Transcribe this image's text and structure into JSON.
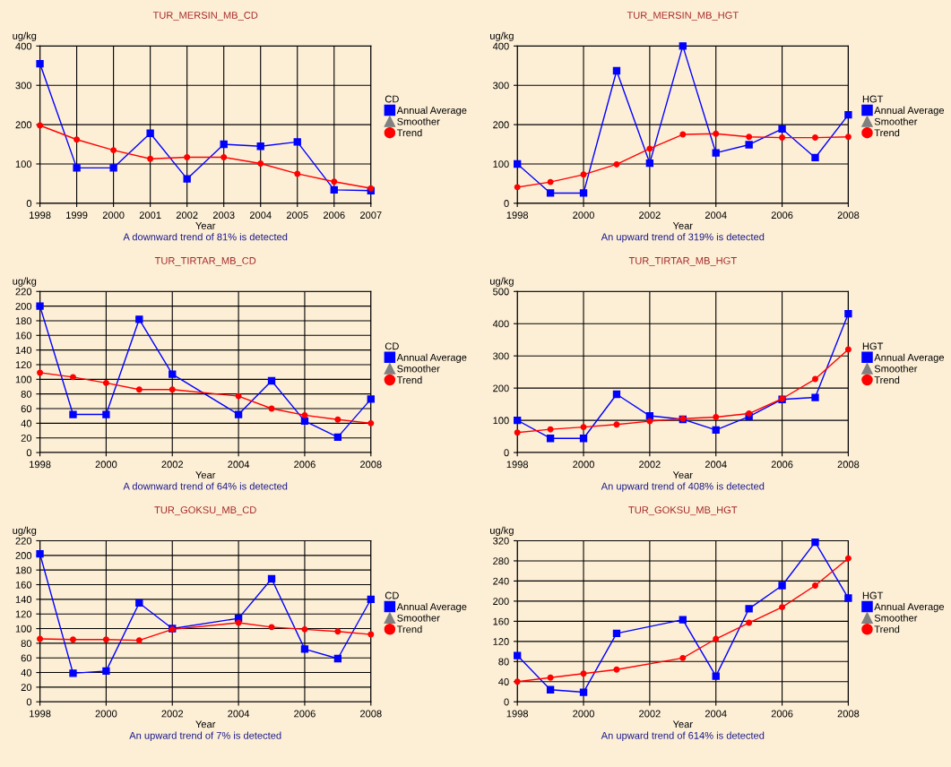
{
  "chart_data": [
    {
      "type": "line",
      "title": "TUR_MERSIN_MB_CD",
      "xlabel": "Year",
      "ylabel": "ug/kg",
      "legend_title": "CD",
      "legend": "right",
      "grid": true,
      "line_style": "solid",
      "xlim": [
        1998,
        2007
      ],
      "xticks": [
        1998,
        1999,
        2000,
        2001,
        2002,
        2003,
        2004,
        2005,
        2006,
        2007
      ],
      "ylim": [
        0,
        400
      ],
      "yticks": [
        0,
        100,
        200,
        300,
        400
      ],
      "annotations": [
        "A downward trend of 81% is detected"
      ],
      "series": [
        {
          "name": "Annual Average",
          "color": "#0000ff",
          "marker": "square",
          "x": [
            1998,
            1999,
            2000,
            2001,
            2002,
            2003,
            2004,
            2005,
            2006,
            2007
          ],
          "values": [
            355,
            90,
            90,
            178,
            62,
            150,
            145,
            156,
            34,
            32
          ]
        },
        {
          "name": "Smoother",
          "color": "#808080",
          "marker": "triangle"
        },
        {
          "name": "Trend",
          "color": "#ff0000",
          "marker": "circle",
          "x": [
            1998,
            1999,
            2000,
            2001,
            2002,
            2003,
            2004,
            2005,
            2006,
            2007
          ],
          "values": [
            198,
            162,
            135,
            113,
            117,
            117,
            101,
            75,
            55,
            38
          ]
        }
      ]
    },
    {
      "type": "line",
      "title": "TUR_MERSIN_MB_HGT",
      "xlabel": "Year",
      "ylabel": "ug/kg",
      "legend_title": "HGT",
      "legend": "right",
      "grid": true,
      "line_style": "solid",
      "xlim": [
        1998,
        2008
      ],
      "xticks": [
        1998,
        2000,
        2002,
        2004,
        2006,
        2008
      ],
      "ylim": [
        0,
        400
      ],
      "yticks": [
        0,
        100,
        200,
        300,
        400
      ],
      "annotations": [
        "An upward trend of 319% is detected"
      ],
      "series": [
        {
          "name": "Annual Average",
          "color": "#0000ff",
          "marker": "square",
          "x": [
            1998,
            1999,
            2000,
            2001,
            2002,
            2003,
            2004,
            2005,
            2006,
            2007,
            2008
          ],
          "values": [
            100,
            26,
            26,
            337,
            102,
            400,
            128,
            149,
            189,
            116,
            225
          ]
        },
        {
          "name": "Smoother",
          "color": "#808080",
          "marker": "triangle"
        },
        {
          "name": "Trend",
          "color": "#ff0000",
          "marker": "circle",
          "x": [
            1998,
            1999,
            2000,
            2001,
            2002,
            2003,
            2004,
            2005,
            2006,
            2007,
            2008
          ],
          "values": [
            41,
            54,
            73,
            99,
            139,
            175,
            177,
            169,
            167,
            167,
            169
          ]
        }
      ]
    },
    {
      "type": "line",
      "title": "TUR_TIRTAR_MB_CD",
      "xlabel": "Year",
      "ylabel": "ug/kg",
      "legend_title": "CD",
      "legend": "right",
      "grid": true,
      "line_style": "solid",
      "xlim": [
        1998,
        2008
      ],
      "xticks": [
        1998,
        2000,
        2002,
        2004,
        2006,
        2008
      ],
      "ylim": [
        0,
        220
      ],
      "yticks": [
        0,
        20,
        40,
        60,
        80,
        100,
        120,
        140,
        160,
        180,
        200,
        220
      ],
      "annotations": [
        "A downward trend of 64% is detected"
      ],
      "series": [
        {
          "name": "Annual Average",
          "color": "#0000ff",
          "marker": "square",
          "x": [
            1998,
            1999,
            2000,
            2001,
            2002,
            2004,
            2005,
            2006,
            2007,
            2008
          ],
          "values": [
            200,
            52,
            52,
            182,
            107,
            52,
            98,
            43,
            21,
            73
          ]
        },
        {
          "name": "Smoother",
          "color": "#808080",
          "marker": "triangle"
        },
        {
          "name": "Trend",
          "color": "#ff0000",
          "marker": "circle",
          "x": [
            1998,
            1999,
            2000,
            2001,
            2002,
            2004,
            2005,
            2006,
            2007,
            2008
          ],
          "values": [
            109,
            103,
            95,
            86,
            86,
            77,
            60,
            51,
            45,
            40
          ]
        }
      ]
    },
    {
      "type": "line",
      "title": "TUR_TIRTAR_MB_HGT",
      "xlabel": "Year",
      "ylabel": "ug/kg",
      "legend_title": "HGT",
      "legend": "right",
      "grid": true,
      "line_style": "solid",
      "xlim": [
        1998,
        2008
      ],
      "xticks": [
        1998,
        2000,
        2002,
        2004,
        2006,
        2008
      ],
      "ylim": [
        0,
        500
      ],
      "yticks": [
        0,
        100,
        200,
        300,
        400,
        500
      ],
      "annotations": [
        "An upward trend of 408% is detected"
      ],
      "series": [
        {
          "name": "Annual Average",
          "color": "#0000ff",
          "marker": "square",
          "x": [
            1998,
            1999,
            2000,
            2001,
            2002,
            2003,
            2004,
            2005,
            2006,
            2007,
            2008
          ],
          "values": [
            100,
            44,
            44,
            181,
            114,
            103,
            70,
            112,
            165,
            171,
            431
          ]
        },
        {
          "name": "Smoother",
          "color": "#808080",
          "marker": "triangle"
        },
        {
          "name": "Trend",
          "color": "#ff0000",
          "marker": "circle",
          "x": [
            1998,
            1999,
            2000,
            2001,
            2002,
            2003,
            2004,
            2005,
            2006,
            2007,
            2008
          ],
          "values": [
            62,
            72,
            79,
            87,
            97,
            105,
            110,
            121,
            167,
            228,
            320
          ]
        }
      ]
    },
    {
      "type": "line",
      "title": "TUR_GOKSU_MB_CD",
      "xlabel": "Year",
      "ylabel": "ug/kg",
      "legend_title": "CD",
      "legend": "right",
      "grid": true,
      "line_style": "solid",
      "xlim": [
        1998,
        2008
      ],
      "xticks": [
        1998,
        2000,
        2002,
        2004,
        2006,
        2008
      ],
      "ylim": [
        0,
        220
      ],
      "yticks": [
        0,
        20,
        40,
        60,
        80,
        100,
        120,
        140,
        160,
        180,
        200,
        220
      ],
      "annotations": [
        "An upward trend of 7% is detected"
      ],
      "series": [
        {
          "name": "Annual Average",
          "color": "#0000ff",
          "marker": "square",
          "x": [
            1998,
            1999,
            2000,
            2001,
            2002,
            2004,
            2005,
            2006,
            2007,
            2008
          ],
          "values": [
            202,
            39,
            42,
            135,
            100,
            114,
            168,
            72,
            59,
            140
          ]
        },
        {
          "name": "Smoother",
          "color": "#808080",
          "marker": "triangle"
        },
        {
          "name": "Trend",
          "color": "#ff0000",
          "marker": "circle",
          "x": [
            1998,
            1999,
            2000,
            2001,
            2002,
            2004,
            2005,
            2006,
            2007,
            2008
          ],
          "values": [
            86,
            85,
            85,
            84,
            99,
            108,
            102,
            99,
            96,
            92
          ]
        }
      ]
    },
    {
      "type": "line",
      "title": "TUR_GOKSU_MB_HGT",
      "xlabel": "Year",
      "ylabel": "ug/kg",
      "legend_title": "HGT",
      "legend": "right",
      "grid": true,
      "line_style": "solid",
      "xlim": [
        1998,
        2008
      ],
      "xticks": [
        1998,
        2000,
        2002,
        2004,
        2006,
        2008
      ],
      "ylim": [
        0,
        320
      ],
      "yticks": [
        0,
        40,
        80,
        120,
        160,
        200,
        240,
        280,
        320
      ],
      "annotations": [
        "An upward trend of 614% is detected"
      ],
      "series": [
        {
          "name": "Annual Average",
          "color": "#0000ff",
          "marker": "square",
          "x": [
            1998,
            1999,
            2000,
            2001,
            2003,
            2004,
            2005,
            2006,
            2007,
            2008
          ],
          "values": [
            92,
            24,
            19,
            136,
            163,
            51,
            185,
            231,
            317,
            206
          ]
        },
        {
          "name": "Smoother",
          "color": "#808080",
          "marker": "triangle"
        },
        {
          "name": "Trend",
          "color": "#ff0000",
          "marker": "circle",
          "x": [
            1998,
            1999,
            2000,
            2001,
            2003,
            2004,
            2005,
            2006,
            2007,
            2008
          ],
          "values": [
            40,
            48,
            56,
            64,
            87,
            125,
            157,
            188,
            231,
            285
          ]
        }
      ]
    }
  ]
}
